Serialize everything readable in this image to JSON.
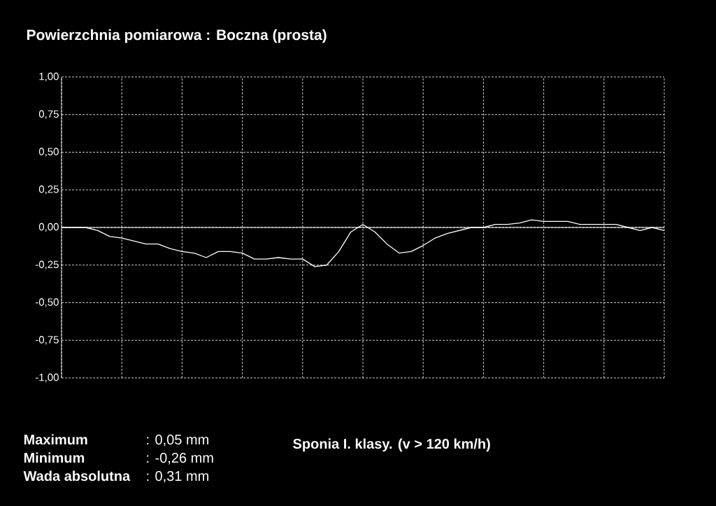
{
  "chart_data": {
    "type": "line",
    "title": "Powierzchnia pomiarowa : Boczna (prosta)",
    "categories": [
      null,
      null,
      null,
      null,
      null,
      null,
      null,
      null,
      null,
      null,
      null,
      null,
      null,
      null,
      null,
      null,
      null,
      null,
      null,
      null,
      null,
      null,
      null,
      null,
      null,
      null,
      null,
      null,
      null,
      null,
      null,
      null,
      null,
      null,
      null,
      null,
      null,
      null,
      null,
      null,
      null,
      null,
      null,
      null,
      null,
      null,
      null,
      null,
      null,
      null,
      null
    ],
    "series": [
      {
        "color": "#ffffff",
        "values": [
          0.0,
          0.0,
          0.0,
          -0.02,
          -0.06,
          -0.07,
          -0.09,
          -0.11,
          -0.11,
          -0.14,
          -0.16,
          -0.17,
          -0.2,
          -0.16,
          -0.16,
          -0.17,
          -0.21,
          -0.21,
          -0.2,
          -0.21,
          -0.21,
          -0.26,
          -0.25,
          -0.16,
          -0.03,
          0.02,
          -0.03,
          -0.11,
          -0.17,
          -0.16,
          -0.12,
          -0.07,
          -0.04,
          -0.02,
          0.0,
          0.0,
          0.02,
          0.02,
          0.03,
          0.05,
          0.04,
          0.04,
          0.04,
          0.02,
          0.02,
          0.02,
          0.02,
          0.0,
          -0.02,
          0.0,
          -0.02
        ]
      }
    ],
    "ylim": [
      -1,
      1
    ],
    "yticks": [
      {
        "value": -1,
        "label": "-1,00"
      },
      {
        "value": -0.75,
        "label": "-0,75"
      },
      {
        "value": -0.5,
        "label": "-0,50"
      },
      {
        "value": -0.25,
        "label": "-0,25"
      },
      {
        "value": 0,
        "label": "0,00"
      },
      {
        "value": 0.25,
        "label": "0,25"
      },
      {
        "value": 0.5,
        "label": "0,50"
      },
      {
        "value": 0.75,
        "label": "0,75"
      },
      {
        "value": 1,
        "label": "1,00"
      }
    ],
    "ref_lines": [
      {
        "axis": "y",
        "value": 0,
        "color": "#ffffff"
      }
    ],
    "grid": true,
    "marker": "none",
    "line_style": "solid",
    "tick_labels": "y",
    "annotations": [
      "Maximum",
      ":  0,05 mm",
      "Minimum",
      ": -0,26 mm",
      "Wada absolutna",
      ":  0,31 mm",
      "Sponia I. klasy. (v > 120 km/h)"
    ]
  }
}
